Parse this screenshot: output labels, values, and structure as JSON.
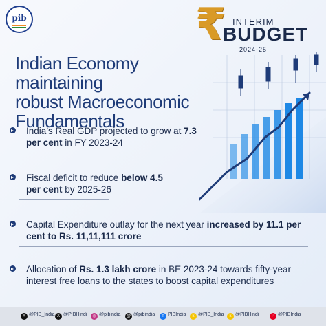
{
  "logo": {
    "text": "pib"
  },
  "badge": {
    "interim": "INTERIM",
    "budget": "BUDGET",
    "year": "2024-25",
    "symbol": "₹"
  },
  "title": {
    "line1": "Indian Economy maintaining",
    "line2": "robust Macroeconomic",
    "line3": "Fundamentals"
  },
  "bullets": [
    {
      "parts": [
        "India’s Real GDP projected to grow at ",
        "7.3 per cent",
        " in FY 2023-24"
      ]
    },
    {
      "parts": [
        "Fiscal deficit to reduce ",
        "below 4.5 per cent",
        " by 2025-26"
      ]
    },
    {
      "parts": [
        "Capital Expenditure outlay for the next year ",
        "increased by 11.1 per cent to Rs. 11,11,111 crore",
        ""
      ]
    },
    {
      "parts": [
        "Allocation of ",
        "Rs. 1.3 lakh crore",
        " in BE 2023-24 towards fifty-year interest free loans to the states to boost capital expenditures"
      ]
    }
  ],
  "footer": {
    "handles": [
      "@PIB_India",
      "@PIBHindi",
      "@pibindia",
      "@pibindia",
      "PIBIndia",
      "@PIB_India",
      "@PIBHindi",
      "@PIBIndia"
    ],
    "icons": [
      "x-icon",
      "x-icon",
      "instagram-icon",
      "threads-icon",
      "facebook-icon",
      "koo-icon",
      "koo-icon",
      "pinterest-icon"
    ]
  },
  "colors": {
    "navy": "#1e3b78",
    "gold": "#d99a27",
    "accent_blue": "#1e88e5"
  }
}
